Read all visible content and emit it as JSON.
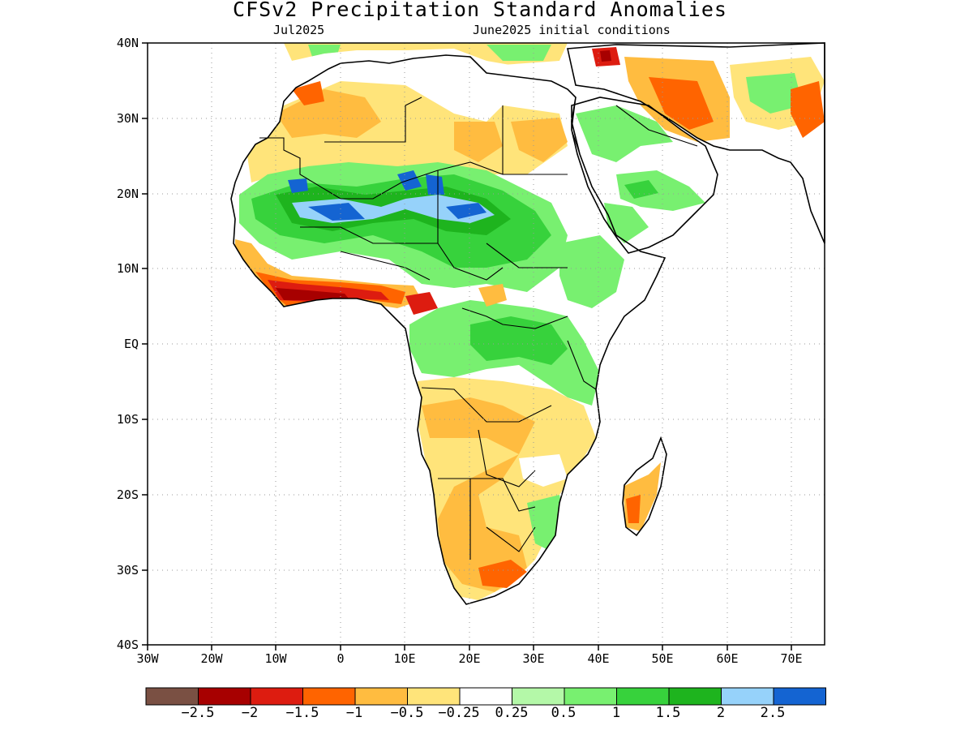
{
  "title": "CFSv2 Precipitation Standard Anomalies",
  "subtitle_left": "Jul2025",
  "subtitle_right": "June2025 initial conditions",
  "map": {
    "lon_range": [
      -30,
      75
    ],
    "lat_range": [
      -40,
      40
    ],
    "lat_labels": [
      "40N",
      "30N",
      "20N",
      "10N",
      "EQ",
      "10S",
      "20S",
      "30S",
      "40S"
    ],
    "lon_labels": [
      "30W",
      "20W",
      "10W",
      "0",
      "10E",
      "20E",
      "30E",
      "40E",
      "50E",
      "60E",
      "70E"
    ],
    "grid": "dotted",
    "land_background": "white",
    "region": "Africa, Arabian Peninsula and Mediterranean"
  },
  "colorbar": {
    "colors": [
      "#7a5043",
      "#a70000",
      "#dd1c10",
      "#ff6400",
      "#ffbc40",
      "#ffe47a",
      "#ffffff",
      "#b4f8a8",
      "#78f070",
      "#37d23c",
      "#1eb41e",
      "#96d2fa",
      "#1464d2"
    ],
    "labels": [
      "−2.5",
      "−2",
      "−1.5",
      "−1",
      "−0.5",
      "−0.25",
      "0.25",
      "0.5",
      "1",
      "1.5",
      "2",
      "2.5"
    ]
  },
  "anomaly_features": [
    {
      "region": "Sahel / Central Sahara",
      "level": "1 to 2.5",
      "color": "#1464d2"
    },
    {
      "region": "Guinea coast",
      "level": "-1.5 to -2",
      "color": "#a70000"
    },
    {
      "region": "Central and East Africa",
      "level": "0.5 to 1.5",
      "color": "#37d23c"
    },
    {
      "region": "Southern Africa",
      "level": "-0.5 to -1",
      "color": "#ffbc40"
    },
    {
      "region": "Madagascar",
      "level": "-1 to -1.5",
      "color": "#ff6400"
    },
    {
      "region": "Arabian Peninsula",
      "level": "0.5 to 1.5",
      "color": "#78f070"
    },
    {
      "region": "Iran / Middle East",
      "level": "-0.5 to -1",
      "color": "#ffbc40"
    }
  ]
}
